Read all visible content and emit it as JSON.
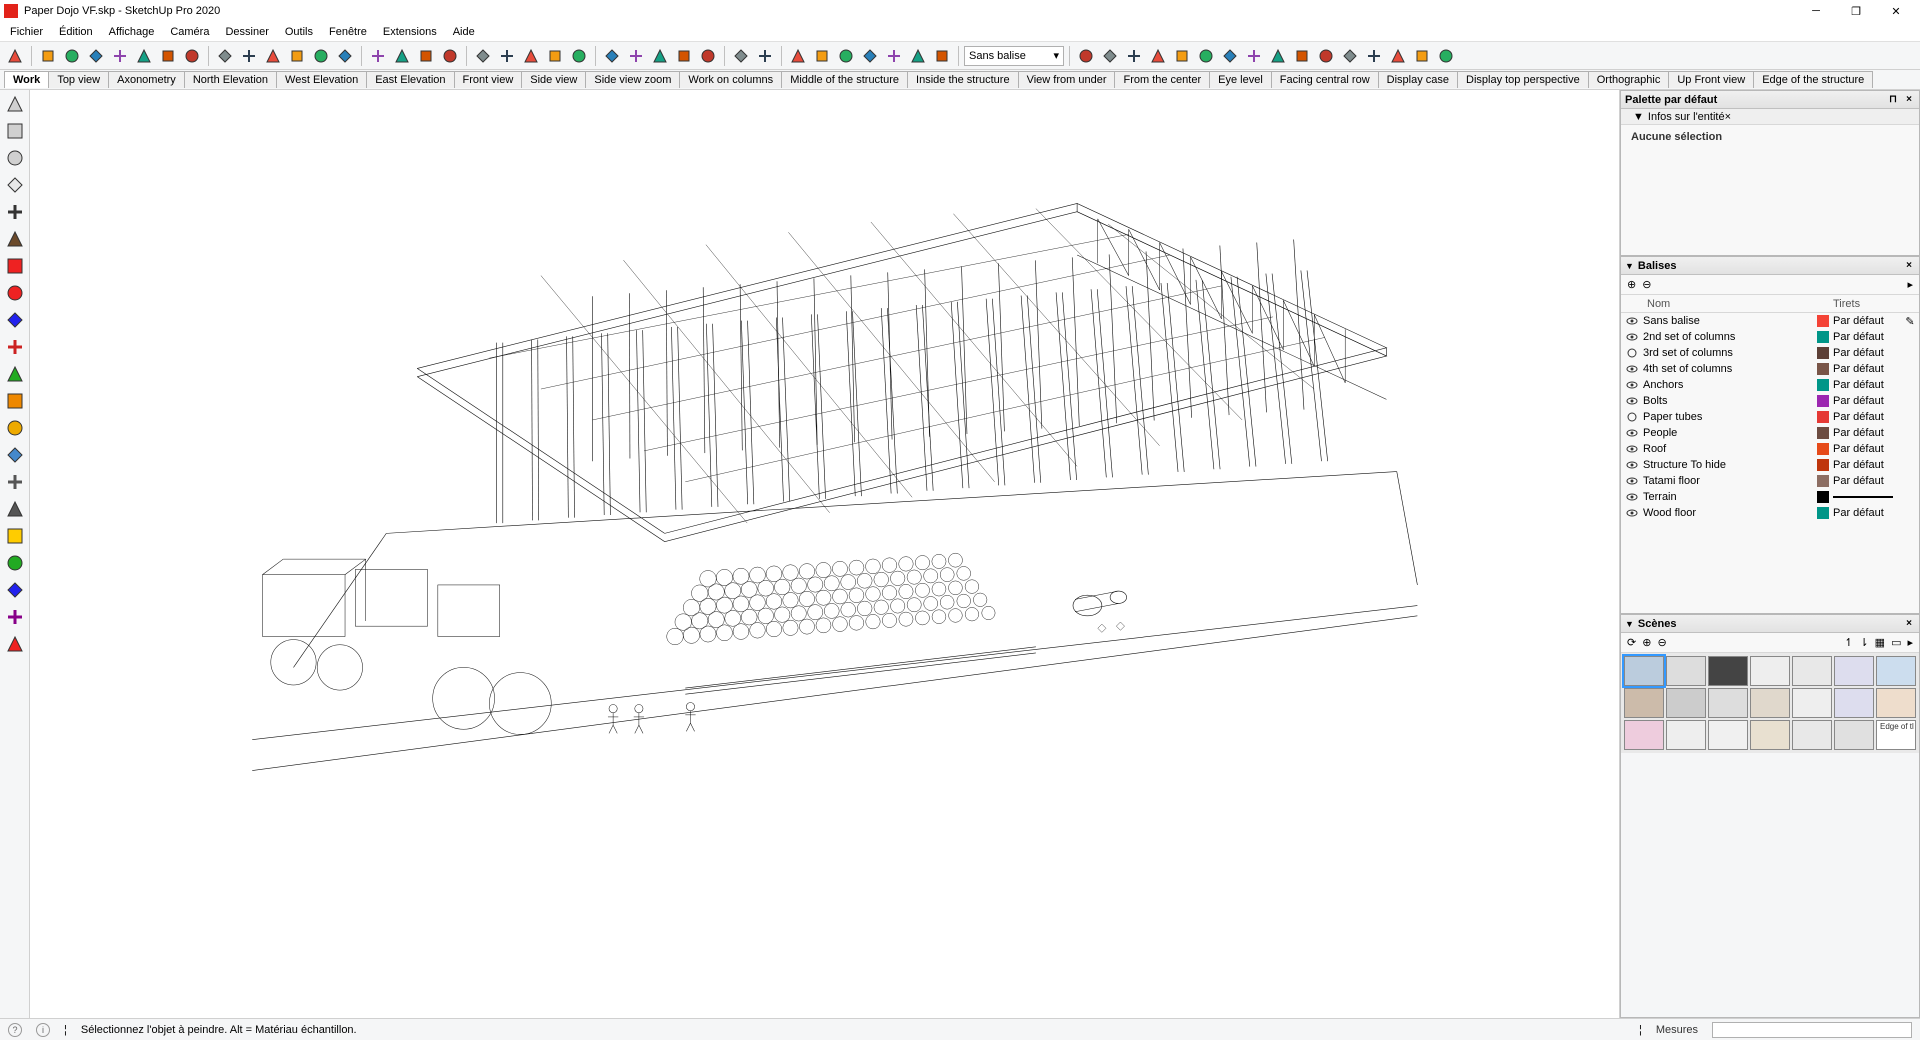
{
  "title": "Paper Dojo VF.skp - SketchUp Pro 2020",
  "menus": [
    "Fichier",
    "Édition",
    "Affichage",
    "Caméra",
    "Dessiner",
    "Outils",
    "Fenêtre",
    "Extensions",
    "Aide"
  ],
  "topToolbar": {
    "groups": [
      [
        "select"
      ],
      [
        "eraser",
        "pencil",
        "line-dash",
        "rect",
        "rect-rot",
        "arc",
        "arc2"
      ],
      [
        "move",
        "rotate",
        "scale",
        "offset",
        "pushpull",
        "followme"
      ],
      [
        "tape",
        "text",
        "dim",
        "paint"
      ],
      [
        "orbit",
        "pan",
        "zoom",
        "zoom-ext",
        "prev"
      ],
      [
        "comp1",
        "comp2",
        "comp3",
        "comp4",
        "comp5"
      ],
      [
        "3dw",
        "gear"
      ],
      [
        "house1",
        "house2",
        "house3",
        "house4",
        "house5",
        "house6",
        "house7"
      ]
    ],
    "combo": "Sans balise",
    "right": [
      "geo",
      "flip",
      "sync1",
      "sync2",
      "sync3",
      "add1",
      "tree",
      "pat1",
      "pat2",
      "cloud",
      "gear2",
      "mail",
      "mail2",
      "layers",
      "hatch",
      "globe"
    ]
  },
  "sceneTabs": [
    "Work",
    "Top view",
    "Axonometry",
    "North Elevation",
    "West Elevation",
    "East Elevation",
    "Front view",
    "Side view",
    "Side view zoom",
    "Work on columns",
    "Middle of the structure",
    "Inside the structure",
    "View from under",
    "From the center",
    "Eye level",
    "Facing central row",
    "Display case",
    "Display top perspective",
    "Orthographic",
    "Up Front view",
    "Edge of the structure"
  ],
  "activeSceneTab": 0,
  "leftTools": [
    {
      "n": "cube",
      "c": "#d0d0d0"
    },
    {
      "n": "shape",
      "c": "#d0d0d0"
    },
    {
      "n": "slab",
      "c": "#d0d0d0"
    },
    {
      "n": "slab2",
      "c": "#e8e8e8"
    },
    {
      "n": "dark",
      "c": "#333"
    },
    {
      "n": "brown",
      "c": "#6b4a2b"
    },
    {
      "n": "redtri",
      "c": "#e22"
    },
    {
      "n": "reddbl",
      "c": "#e22"
    },
    {
      "n": "bluetri",
      "c": "#22e"
    },
    {
      "n": "red2",
      "c": "#c22"
    },
    {
      "n": "green",
      "c": "#2a2"
    },
    {
      "n": "orange",
      "c": "#e80"
    },
    {
      "n": "amber",
      "c": "#ea0"
    },
    {
      "n": "door",
      "c": "#48c"
    },
    {
      "n": "line1",
      "c": "#555"
    },
    {
      "n": "line2",
      "c": "#555"
    },
    {
      "n": "shirt",
      "c": "#fc0"
    },
    {
      "n": "shirt2",
      "c": "#2a2"
    },
    {
      "n": "shirt3",
      "c": "#22e"
    },
    {
      "n": "shirt4",
      "c": "#808"
    },
    {
      "n": "swirl",
      "c": "#e22"
    }
  ],
  "palette": {
    "title": "Palette par défaut",
    "entity": {
      "title": "Infos sur l'entité",
      "empty": "Aucune sélection"
    },
    "tags": {
      "title": "Balises",
      "headers": {
        "name": "Nom",
        "dashes": "Tirets"
      },
      "defaultDash": "Par défaut",
      "list": [
        {
          "vis": "eye",
          "name": "Sans balise",
          "color": "#f44336",
          "pen": true
        },
        {
          "vis": "eye",
          "name": "2nd set of columns",
          "color": "#009688"
        },
        {
          "vis": "circle",
          "name": "3rd set of columns",
          "color": "#5d4037"
        },
        {
          "vis": "eye",
          "name": "4th set of columns",
          "color": "#795548"
        },
        {
          "vis": "eye",
          "name": "Anchors",
          "color": "#009688"
        },
        {
          "vis": "eye",
          "name": "Bolts",
          "color": "#9c27b0"
        },
        {
          "vis": "circle",
          "name": "Paper tubes",
          "color": "#e53935"
        },
        {
          "vis": "eye",
          "name": "People",
          "color": "#6d4c41"
        },
        {
          "vis": "eye",
          "name": "Roof",
          "color": "#e64a19"
        },
        {
          "vis": "eye",
          "name": "Structure To hide",
          "color": "#bf360c"
        },
        {
          "vis": "eye",
          "name": "Tatami floor",
          "color": "#8d6e63"
        },
        {
          "vis": "eye",
          "name": "Terrain",
          "color": "#000000",
          "dash": "line"
        },
        {
          "vis": "eye",
          "name": "Wood floor",
          "color": "#009688"
        }
      ]
    },
    "scenes": {
      "title": "Scènes",
      "thumbs": 21,
      "selected": 0,
      "lastLabel": "Edge of tl"
    }
  },
  "status": {
    "hint": "Sélectionnez l'objet à peindre. Alt = Matériau échantillon.",
    "measuresLabel": "Mesures"
  },
  "colors": {
    "toolbarIcons": [
      "#e74c3c",
      "#f39c12",
      "#27ae60",
      "#2980b9",
      "#8e44ad",
      "#16a085",
      "#d35400",
      "#c0392b",
      "#7f8c8d",
      "#2c3e50"
    ]
  }
}
